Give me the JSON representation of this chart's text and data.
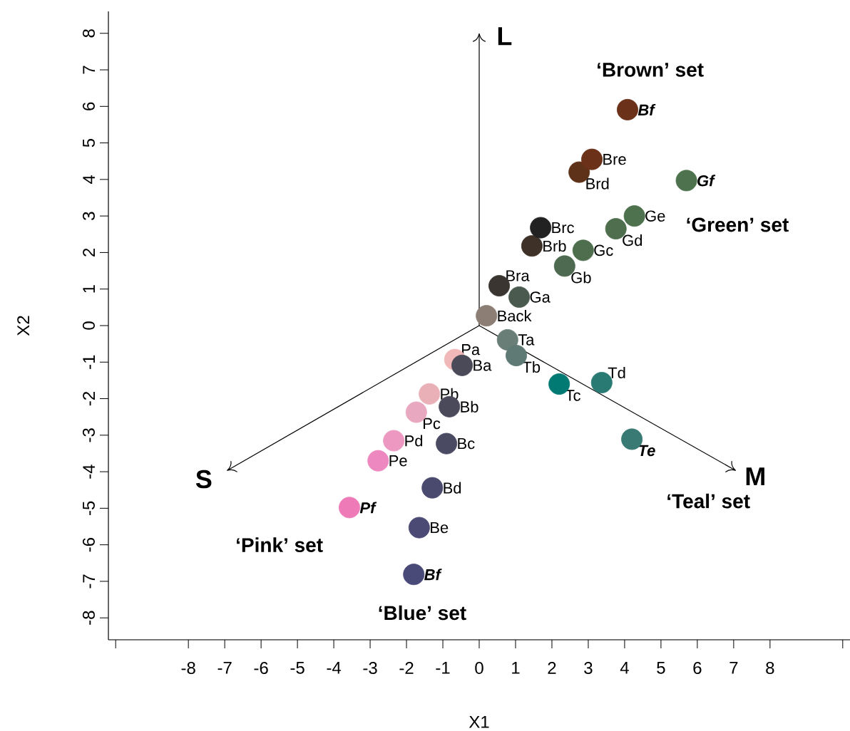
{
  "chart_data": {
    "type": "scatter",
    "xlabel": "X1",
    "ylabel": "X2",
    "xlim": [
      -10.2,
      10.2
    ],
    "ylim": [
      -8.6,
      8.6
    ],
    "xticks": [
      {
        "value": -10,
        "label": null
      },
      -8,
      -7,
      -6,
      -5,
      -4,
      -3,
      -2,
      -1,
      0,
      1,
      2,
      3,
      4,
      5,
      6,
      7,
      8,
      {
        "value": 10,
        "label": null
      }
    ],
    "yticks": [
      -8,
      -7,
      -6,
      -5,
      -4,
      -3,
      -2,
      -1,
      0,
      1,
      2,
      3,
      4,
      5,
      6,
      7,
      8
    ],
    "series": [
      {
        "name": "‘Brown’ set",
        "marker": "circle",
        "x": [
          0.55,
          1.45,
          1.69,
          2.75,
          3.1,
          4.08
        ],
        "values": [
          1.09,
          2.18,
          2.68,
          4.2,
          4.55,
          5.91
        ],
        "colors": [
          "#3a3530",
          "#3e3228",
          "#222222",
          "#5e3219",
          "#6b3219",
          "#6b3219"
        ]
      },
      {
        "name": "‘Green’ set",
        "marker": "circle",
        "x": [
          1.1,
          2.35,
          2.86,
          3.76,
          4.27,
          5.7
        ],
        "values": [
          0.78,
          1.63,
          2.06,
          2.65,
          3.0,
          3.97
        ],
        "colors": [
          "#4a5a4e",
          "#4e6a50",
          "#4e6e4e",
          "#4e6e4e",
          "#4e724e",
          "#4e724e"
        ]
      },
      {
        "name": "‘Teal’ set",
        "marker": "circle",
        "x": [
          0.78,
          1.02,
          2.2,
          3.37,
          4.2
        ],
        "values": [
          -0.39,
          -0.82,
          -1.6,
          -1.56,
          -3.11
        ],
        "colors": [
          "#6a7e78",
          "#5f7a74",
          "#007a72",
          "#2a7a74",
          "#3a7a74"
        ]
      },
      {
        "name": "‘Pink’ set",
        "marker": "circle",
        "x": [
          -0.67,
          -1.37,
          -1.73,
          -2.35,
          -2.78,
          -3.57
        ],
        "values": [
          -0.93,
          -1.87,
          -2.37,
          -3.15,
          -3.7,
          -4.98
        ],
        "colors": [
          "#f0b8b8",
          "#eab0b8",
          "#e8a8c0",
          "#ec98c0",
          "#ee88c0",
          "#ee7ab8"
        ]
      },
      {
        "name": "‘Blue’ set",
        "marker": "circle",
        "x": [
          -0.47,
          -0.82,
          -0.9,
          -1.29,
          -1.65,
          -1.8
        ],
        "values": [
          -1.09,
          -2.22,
          -3.23,
          -4.44,
          -5.53,
          -6.81
        ],
        "colors": [
          "#4a4a58",
          "#4a4a5a",
          "#4a4a62",
          "#4a4a6e",
          "#4a4a74",
          "#4a4a78"
        ]
      },
      {
        "marker": "circle",
        "x": [
          0.2
        ],
        "values": [
          0.27
        ],
        "colors": [
          "#8c7e75"
        ]
      },
      {
        "type": "line",
        "marker": "none",
        "color": "#000000",
        "x": [
          0,
          0
        ],
        "values": [
          0,
          8
        ]
      },
      {
        "type": "line",
        "marker": "none",
        "color": "#000000",
        "x": [
          0,
          -6.94
        ],
        "values": [
          0,
          -3.97
        ]
      },
      {
        "type": "line",
        "marker": "none",
        "color": "#000000",
        "x": [
          0,
          7.06
        ],
        "values": [
          0,
          -3.97
        ]
      }
    ],
    "annotations": [
      {
        "text": "L",
        "x": 0,
        "y": 8
      },
      {
        "text": "S",
        "x": -6.94,
        "y": -3.97
      },
      {
        "text": "M",
        "x": 7.06,
        "y": -3.97
      },
      {
        "text": "Bra",
        "x": 0.55,
        "y": 1.09
      },
      {
        "text": "Brb",
        "x": 1.45,
        "y": 2.18
      },
      {
        "text": "Brc",
        "x": 1.69,
        "y": 2.68
      },
      {
        "text": "Brd",
        "x": 2.75,
        "y": 4.2
      },
      {
        "text": "Bre",
        "x": 3.1,
        "y": 4.55
      },
      {
        "text": "Bf",
        "x": 4.08,
        "y": 5.91
      },
      {
        "text": "Ga",
        "x": 1.1,
        "y": 0.78
      },
      {
        "text": "Gb",
        "x": 2.35,
        "y": 1.63
      },
      {
        "text": "Gc",
        "x": 2.86,
        "y": 2.06
      },
      {
        "text": "Gd",
        "x": 3.76,
        "y": 2.65
      },
      {
        "text": "Ge",
        "x": 4.27,
        "y": 3.0
      },
      {
        "text": "Gf",
        "x": 5.7,
        "y": 3.97
      },
      {
        "text": "Ta",
        "x": 0.78,
        "y": -0.39
      },
      {
        "text": "Tb",
        "x": 1.02,
        "y": -0.82
      },
      {
        "text": "Tc",
        "x": 2.2,
        "y": -1.6
      },
      {
        "text": "Td",
        "x": 3.37,
        "y": -1.56
      },
      {
        "text": "Te",
        "x": 4.2,
        "y": -3.11
      },
      {
        "text": "Pa",
        "x": -0.67,
        "y": -0.93
      },
      {
        "text": "Pb",
        "x": -1.37,
        "y": -1.87
      },
      {
        "text": "Pc",
        "x": -1.73,
        "y": -2.37
      },
      {
        "text": "Pd",
        "x": -2.35,
        "y": -3.15
      },
      {
        "text": "Pe",
        "x": -2.78,
        "y": -3.7
      },
      {
        "text": "Pf",
        "x": -3.57,
        "y": -4.98
      },
      {
        "text": "Ba",
        "x": -0.47,
        "y": -1.09
      },
      {
        "text": "Bb",
        "x": -0.82,
        "y": -2.22
      },
      {
        "text": "Bc",
        "x": -0.9,
        "y": -3.23
      },
      {
        "text": "Bd",
        "x": -1.29,
        "y": -4.44
      },
      {
        "text": "Be",
        "x": -1.65,
        "y": -5.53
      },
      {
        "text": "Bf",
        "x": -1.8,
        "y": -6.81
      },
      {
        "text": "Back",
        "x": 0.2,
        "y": 0.27
      }
    ]
  }
}
